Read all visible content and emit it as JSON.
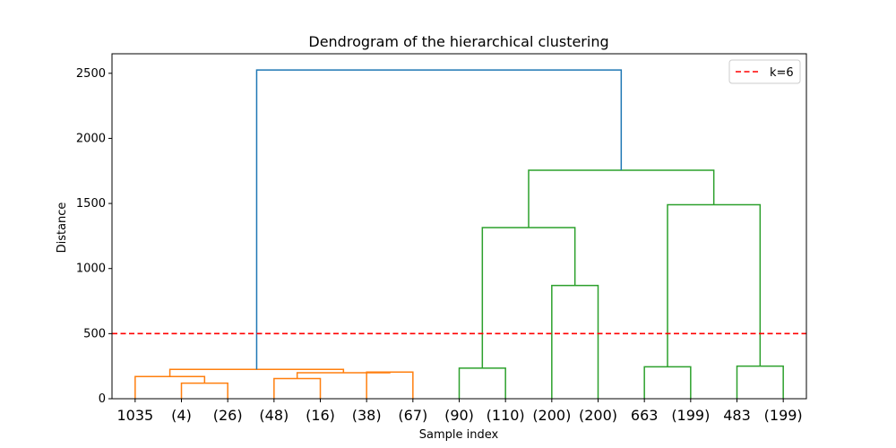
{
  "chart_data": {
    "type": "dendrogram",
    "title": "Dendrogram of the hierarchical clustering",
    "xlabel": "Sample index",
    "ylabel": "Distance",
    "ylim": [
      0,
      2650
    ],
    "yticks": [
      0,
      500,
      1000,
      1500,
      2000,
      2500
    ],
    "leaves": [
      "1035",
      "(4)",
      "(26)",
      "(48)",
      "(16)",
      "(38)",
      "(67)",
      "(90)",
      "(110)",
      "(200)",
      "(200)",
      "663",
      "(199)",
      "483",
      "(199)"
    ],
    "threshold": {
      "label": "k=6",
      "value": 500,
      "color": "#ff0000"
    },
    "legend": {
      "position": "top-right",
      "entries": [
        "k=6"
      ]
    },
    "colors": {
      "cluster_a": "#ff7f0e",
      "cluster_b": "#2ca02c",
      "root": "#1f77b4"
    },
    "links": [
      {
        "left": 1,
        "right": 2,
        "height": 120,
        "color": "cluster_a"
      },
      {
        "left": 0,
        "right": 15,
        "height": 170,
        "color": "cluster_a"
      },
      {
        "left": 3,
        "right": 4,
        "height": 155,
        "color": "cluster_a"
      },
      {
        "left": 5,
        "right": 6,
        "height": 205,
        "color": "cluster_a"
      },
      {
        "left": 17,
        "right": 18,
        "height": 200,
        "color": "cluster_a"
      },
      {
        "left": 16,
        "right": 19,
        "height": 225,
        "color": "cluster_a"
      },
      {
        "left": 7,
        "right": 8,
        "height": 235,
        "color": "cluster_b"
      },
      {
        "left": 9,
        "right": 10,
        "height": 870,
        "color": "cluster_b"
      },
      {
        "left": 21,
        "right": 22,
        "height": 1315,
        "color": "cluster_b"
      },
      {
        "left": 11,
        "right": 12,
        "height": 245,
        "color": "cluster_b"
      },
      {
        "left": 13,
        "right": 14,
        "height": 250,
        "color": "cluster_b"
      },
      {
        "left": 24,
        "right": 25,
        "height": 1490,
        "color": "cluster_b"
      },
      {
        "left": 23,
        "right": 26,
        "height": 1755,
        "color": "cluster_b"
      },
      {
        "left": 20,
        "right": 27,
        "height": 2525,
        "color": "root"
      }
    ]
  }
}
